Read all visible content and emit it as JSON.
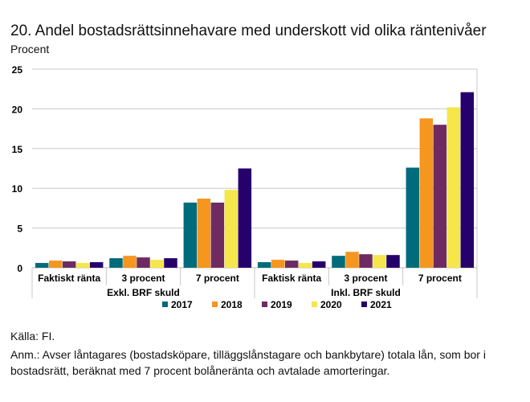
{
  "chart_data": {
    "type": "bar",
    "title": "20. Andel bostadsrättsinnehavare med underskott vid olika räntenivåer",
    "ylabel": "Procent",
    "ylim": [
      0,
      25
    ],
    "yticks": [
      0,
      5,
      10,
      15,
      20,
      25
    ],
    "grid": true,
    "legend_placement": "bottom",
    "categories": [
      "Faktiskt ränta",
      "3 procent",
      "7 procent",
      "Faktisk ränta",
      "3 procent",
      "7 procent"
    ],
    "category_groups": [
      {
        "label": "Exkl. BRF skuld",
        "span": 3
      },
      {
        "label": "Inkl. BRF skuld",
        "span": 3
      }
    ],
    "series": [
      {
        "name": "2017",
        "color": "#006b7b",
        "values": [
          0.6,
          1.2,
          8.2,
          0.7,
          1.5,
          12.6
        ]
      },
      {
        "name": "2018",
        "color": "#f5961e",
        "values": [
          0.9,
          1.5,
          8.7,
          1.0,
          2.0,
          18.8
        ]
      },
      {
        "name": "2019",
        "color": "#6e2b62",
        "values": [
          0.8,
          1.3,
          8.2,
          0.9,
          1.7,
          18.0
        ]
      },
      {
        "name": "2020",
        "color": "#f5e64b",
        "values": [
          0.6,
          1.0,
          9.8,
          0.6,
          1.6,
          20.2
        ]
      },
      {
        "name": "2021",
        "color": "#26006b",
        "values": [
          0.7,
          1.2,
          12.5,
          0.8,
          1.6,
          22.1
        ]
      }
    ]
  },
  "footer": {
    "source": "Källa: FI.",
    "note": "Anm.: Avser låntagares (bostadsköpare, tilläggslånstagare och bankbytare) totala lån, som bor i bostadsrätt, beräknat med 7 procent bolåneränta och avtalade amorteringar."
  }
}
